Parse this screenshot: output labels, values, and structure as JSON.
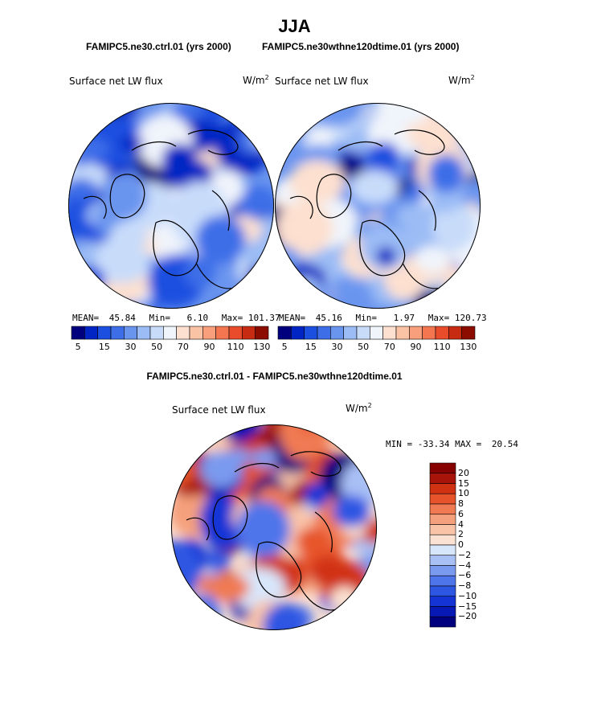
{
  "figure": {
    "title": "JJA",
    "left_subtitle": "FAMIPC5.ne30.ctrl.01 (yrs 2000)",
    "right_subtitle": "FAMIPC5.ne30wthne120dtime.01 (yrs 2000)",
    "diff_subtitle": "FAMIPC5.ne30.ctrl.01 - FAMIPC5.ne30wthne120dtime.01"
  },
  "colors": {
    "abs_scale": [
      "#00007f",
      "#0025c4",
      "#1a4fe0",
      "#3d6ee8",
      "#6a95ef",
      "#9bbcf5",
      "#c8dcfa",
      "#f0f4fb",
      "#fde0cf",
      "#fbc3a5",
      "#f99f7c",
      "#f47650",
      "#e84c2a",
      "#c72c12",
      "#8c0d00"
    ],
    "diff_scale": [
      "#00007f",
      "#0619b5",
      "#1434d6",
      "#2d56e3",
      "#4f75ea",
      "#7a9aef",
      "#a9c0f5",
      "#d8e6fb",
      "#fbe1d1",
      "#f9c3a8",
      "#f5a07c",
      "#f07a52",
      "#e7542c",
      "#d13113",
      "#a8130a",
      "#860000"
    ]
  },
  "chart_data": [
    {
      "type": "heatmap",
      "projection": "north-polar-stereographic",
      "title": "Surface net LW flux",
      "units": "W/m",
      "units_exp": "2",
      "mean_label": "MEAN=",
      "mean": "45.84",
      "min_label": "Min=",
      "min": "6.10",
      "max_label": "Max=",
      "max": "101.37",
      "colorbar_levels": [
        5,
        10,
        15,
        20,
        30,
        40,
        50,
        60,
        70,
        80,
        90,
        100,
        110,
        120,
        130
      ],
      "colorbar_tick_labels": [
        "5",
        "15",
        "30",
        "50",
        "70",
        "90",
        "110",
        "130"
      ]
    },
    {
      "type": "heatmap",
      "projection": "north-polar-stereographic",
      "title": "Surface net LW flux",
      "units": "W/m",
      "units_exp": "2",
      "mean_label": "MEAN=",
      "mean": "45.16",
      "min_label": "Min=",
      "min": "1.97",
      "max_label": "Max=",
      "max": "120.73",
      "colorbar_levels": [
        5,
        10,
        15,
        20,
        30,
        40,
        50,
        60,
        70,
        80,
        90,
        100,
        110,
        120,
        130
      ],
      "colorbar_tick_labels": [
        "5",
        "15",
        "30",
        "50",
        "70",
        "90",
        "110",
        "130"
      ]
    },
    {
      "type": "heatmap",
      "projection": "north-polar-stereographic",
      "title": "Surface net LW flux",
      "units": "W/m",
      "units_exp": "2",
      "min_label": "MIN =",
      "min": "-33.34",
      "max_label": "MAX =",
      "max": "20.54",
      "colorbar_tick_labels": [
        "20",
        "15",
        "10",
        "8",
        "6",
        "4",
        "2",
        "0",
        "−2",
        "−4",
        "−6",
        "−8",
        "−10",
        "−15",
        "−20"
      ]
    }
  ]
}
